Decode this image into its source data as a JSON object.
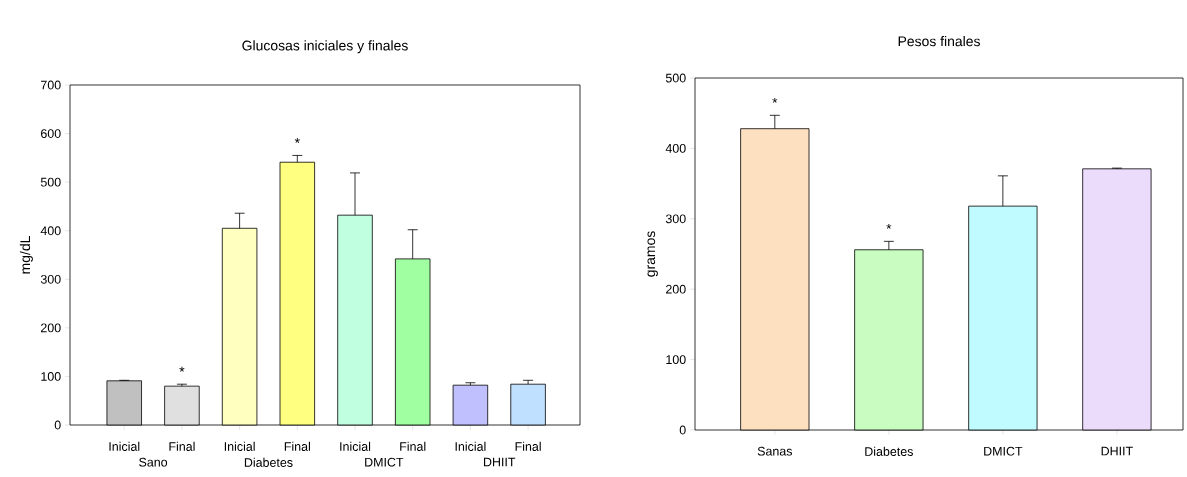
{
  "chart_data": [
    {
      "type": "bar",
      "title": "Glucosas iniciales y finales",
      "ylabel": "mg/dL",
      "categories": [
        "Inicial",
        "Final",
        "Inicial",
        "Final",
        "Inicial",
        "Final",
        "Inicial",
        "Final"
      ],
      "values": [
        91,
        80,
        405,
        541,
        432,
        342,
        82,
        84
      ],
      "errors": [
        [
          91,
          92
        ],
        [
          80,
          84
        ],
        [
          405,
          436
        ],
        [
          541,
          555
        ],
        [
          432,
          519
        ],
        [
          342,
          402
        ],
        [
          82,
          87
        ],
        [
          84,
          92
        ]
      ],
      "colors": [
        "#c0c0c0",
        "#e0e0e0",
        "#ffffc0",
        "#ffff80",
        "#c0ffe0",
        "#a0ffa0",
        "#c0c0ff",
        "#c0e0ff"
      ],
      "value_labels": [
        null,
        "*",
        null,
        "*",
        null,
        null,
        null,
        null
      ],
      "annotations": [
        "Sano",
        "Diabetes",
        "DMICT",
        "DHIIT"
      ],
      "ylim": [
        0,
        700
      ],
      "yticks": [
        0,
        100,
        200,
        300,
        400,
        500,
        600,
        700
      ]
    },
    {
      "type": "bar",
      "title": "Pesos finales",
      "ylabel": "gramos",
      "categories": [
        "Sanas",
        "Diabetes",
        "DMICT",
        "DHIIT"
      ],
      "values": [
        428,
        256,
        318,
        371
      ],
      "errors": [
        [
          428,
          447
        ],
        [
          256,
          268
        ],
        [
          318,
          361
        ],
        [
          371,
          372
        ]
      ],
      "colors": [
        "#fde0c0",
        "#c8fcc0",
        "#c0fcff",
        "#ecdcfc"
      ],
      "value_labels": [
        "*",
        "*",
        null,
        null
      ],
      "ylim": [
        0,
        500
      ],
      "yticks": [
        0,
        100,
        200,
        300,
        400,
        500
      ]
    }
  ]
}
